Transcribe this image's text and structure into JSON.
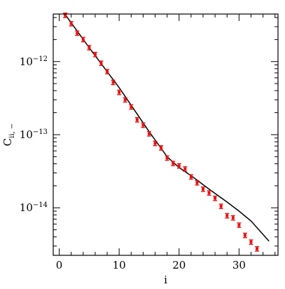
{
  "chart_data": {
    "type": "scatter",
    "xlabel": "i",
    "ylabel": "C",
    "ylabel_subscript": "ii, −",
    "xlim": [
      -1,
      36.5
    ],
    "ylim_log10": [
      -14.65,
      -11.35
    ],
    "yscale": "log",
    "x_tick_labels": [
      "0",
      "10",
      "20",
      "30"
    ],
    "x_major_ticks": [
      0,
      10,
      20,
      30
    ],
    "y_tick_labels": [
      {
        "base": "10",
        "exp": "−12",
        "log10": -12
      },
      {
        "base": "10",
        "exp": "−13",
        "log10": -13
      },
      {
        "base": "10",
        "exp": "−14",
        "log10": -14
      }
    ],
    "series": [
      {
        "type": "scatter-errorbar",
        "color": "#e81010",
        "x": [
          1,
          2,
          3,
          4,
          5,
          6,
          7,
          8,
          9,
          10,
          11,
          12,
          13,
          14,
          15,
          16,
          17,
          18,
          19,
          20,
          21,
          22,
          23,
          24,
          25,
          26,
          27,
          28,
          29,
          30,
          31,
          32,
          33
        ],
        "y": [
          4.3e-12,
          3.3e-12,
          2.45e-12,
          2e-12,
          1.55e-12,
          1.25e-12,
          9.5e-13,
          7.3e-13,
          5.2e-13,
          3.8e-13,
          3e-13,
          2.4e-13,
          1.6e-13,
          1.35e-13,
          1.03e-13,
          7.6e-14,
          6.6e-14,
          4.8e-14,
          4.05e-14,
          3.75e-14,
          3.4e-14,
          2.65e-14,
          2.2e-14,
          1.8e-14,
          1.6e-14,
          1.35e-14,
          1.05e-14,
          7.8e-15,
          7.3e-15,
          5.8e-15,
          4.2e-15,
          3.4e-15,
          2.75e-15
        ],
        "err_frac": 0.07
      },
      {
        "type": "line",
        "color": "#000000",
        "x": [
          1,
          5,
          10,
          15,
          18,
          20,
          22,
          25,
          28,
          30,
          32,
          35
        ],
        "y": [
          4.4e-12,
          1.55e-12,
          4.4e-13,
          1.1e-13,
          5e-14,
          3.55e-14,
          2.75e-14,
          1.8e-14,
          1.2e-14,
          9e-15,
          6.6e-15,
          3.5e-15
        ]
      }
    ]
  }
}
